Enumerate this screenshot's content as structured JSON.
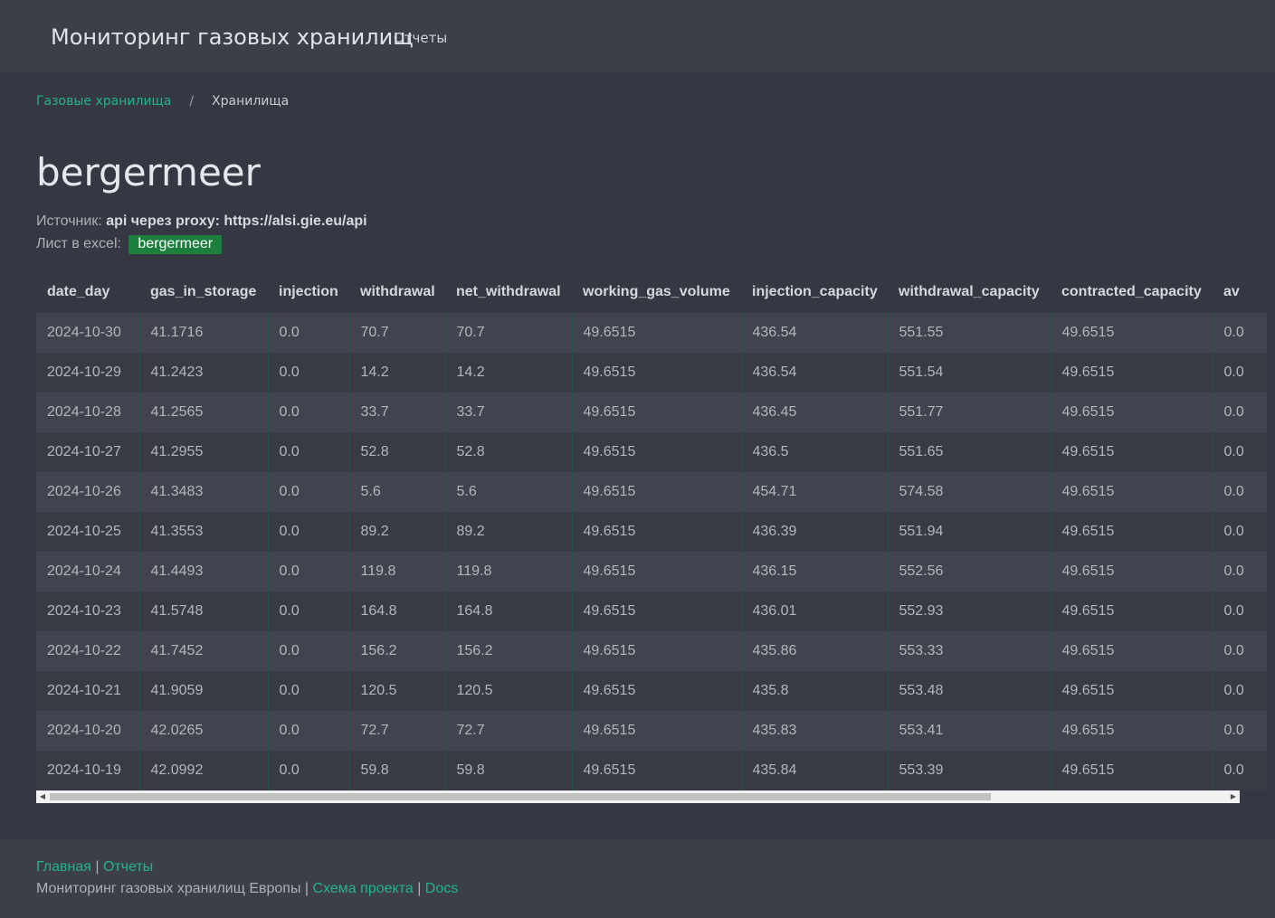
{
  "navbar": {
    "brand": "Мониторинг газовых хранилищ",
    "link_reports": "Отчеты"
  },
  "breadcrumb": {
    "root": "Газовые хранилища",
    "separator": "/",
    "current": "Хранилища"
  },
  "page": {
    "title": "bergermeer",
    "source_label": "Источник:",
    "source_value": "api через proxy: https://alsi.gie.eu/api",
    "sheet_label": "Лист в excel:",
    "sheet_badge": "bergermeer"
  },
  "table": {
    "columns": [
      "date_day",
      "gas_in_storage",
      "injection",
      "withdrawal",
      "net_withdrawal",
      "working_gas_volume",
      "injection_capacity",
      "withdrawal_capacity",
      "contracted_capacity",
      "av"
    ],
    "rows": [
      [
        "2024-10-30",
        "41.1716",
        "0.0",
        "70.7",
        "70.7",
        "49.6515",
        "436.54",
        "551.55",
        "49.6515",
        "0.0"
      ],
      [
        "2024-10-29",
        "41.2423",
        "0.0",
        "14.2",
        "14.2",
        "49.6515",
        "436.54",
        "551.54",
        "49.6515",
        "0.0"
      ],
      [
        "2024-10-28",
        "41.2565",
        "0.0",
        "33.7",
        "33.7",
        "49.6515",
        "436.45",
        "551.77",
        "49.6515",
        "0.0"
      ],
      [
        "2024-10-27",
        "41.2955",
        "0.0",
        "52.8",
        "52.8",
        "49.6515",
        "436.5",
        "551.65",
        "49.6515",
        "0.0"
      ],
      [
        "2024-10-26",
        "41.3483",
        "0.0",
        "5.6",
        "5.6",
        "49.6515",
        "454.71",
        "574.58",
        "49.6515",
        "0.0"
      ],
      [
        "2024-10-25",
        "41.3553",
        "0.0",
        "89.2",
        "89.2",
        "49.6515",
        "436.39",
        "551.94",
        "49.6515",
        "0.0"
      ],
      [
        "2024-10-24",
        "41.4493",
        "0.0",
        "119.8",
        "119.8",
        "49.6515",
        "436.15",
        "552.56",
        "49.6515",
        "0.0"
      ],
      [
        "2024-10-23",
        "41.5748",
        "0.0",
        "164.8",
        "164.8",
        "49.6515",
        "436.01",
        "552.93",
        "49.6515",
        "0.0"
      ],
      [
        "2024-10-22",
        "41.7452",
        "0.0",
        "156.2",
        "156.2",
        "49.6515",
        "435.86",
        "553.33",
        "49.6515",
        "0.0"
      ],
      [
        "2024-10-21",
        "41.9059",
        "0.0",
        "120.5",
        "120.5",
        "49.6515",
        "435.8",
        "553.48",
        "49.6515",
        "0.0"
      ],
      [
        "2024-10-20",
        "42.0265",
        "0.0",
        "72.7",
        "72.7",
        "49.6515",
        "435.83",
        "553.41",
        "49.6515",
        "0.0"
      ],
      [
        "2024-10-19",
        "42.0992",
        "0.0",
        "59.8",
        "59.8",
        "49.6515",
        "435.84",
        "553.39",
        "49.6515",
        "0.0"
      ]
    ]
  },
  "footer": {
    "link_home": "Главная",
    "link_reports": "Отчеты",
    "separator": "|",
    "site_text": "Мониторинг газовых хранилищ Европы",
    "link_schema": "Схема проекта",
    "link_docs": "Docs"
  },
  "colors": {
    "background": "#353842",
    "accent": "#1fb58a",
    "badge": "#1c7f3e"
  },
  "icons": {
    "scroll_left": "triangle-left-icon",
    "scroll_right": "triangle-right-icon"
  }
}
